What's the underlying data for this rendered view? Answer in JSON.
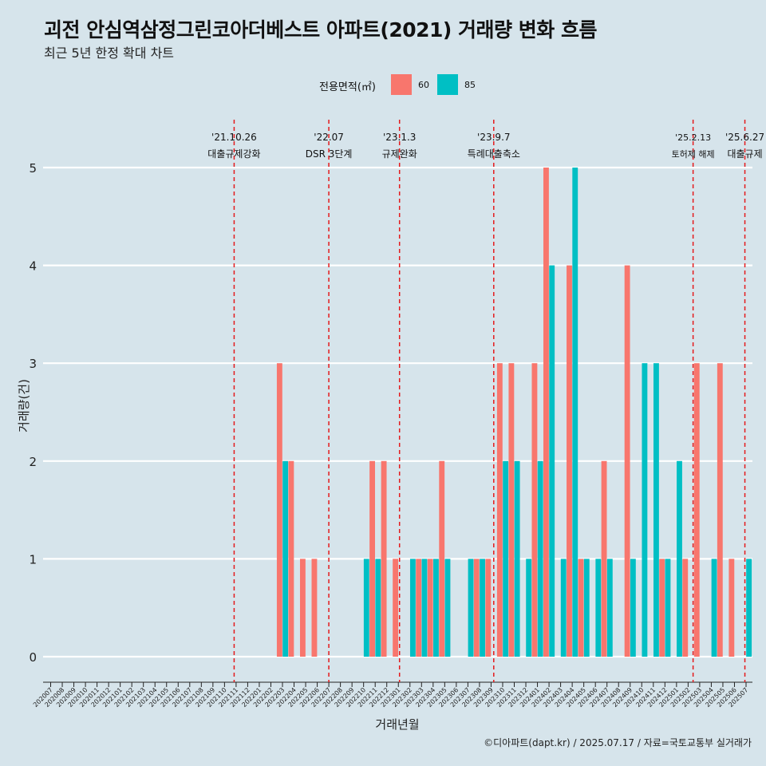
{
  "colors": {
    "background": "#d6e4eb",
    "gridline": "#ffffff",
    "series_60": "#f8766d",
    "series_85": "#00bfc4",
    "event_line": "#e41a1c"
  },
  "legend": {
    "title": "전용면적(㎡)",
    "items": [
      {
        "name": "60",
        "color": "#f8766d"
      },
      {
        "name": "85",
        "color": "#00bfc4"
      }
    ]
  },
  "chart_data": {
    "type": "bar",
    "title": "괴전 안심역삼정그린코아더베스트 아파트(2021) 거래량 변화 흐름",
    "subtitle": "최근 5년 한정 확대 차트",
    "xlabel": "거래년월",
    "ylabel": "거래량(건)",
    "caption": "©디아파트(dapt.kr) / 2025.07.17 / 자료=국토교통부 실거래가",
    "ylim": [
      0,
      5
    ],
    "yticks": [
      0,
      1,
      2,
      3,
      4,
      5
    ],
    "categories": [
      "202007",
      "202008",
      "202009",
      "202010",
      "202011",
      "202012",
      "202101",
      "202102",
      "202103",
      "202104",
      "202105",
      "202106",
      "202107",
      "202108",
      "202109",
      "202110",
      "202111",
      "202112",
      "202201",
      "202202",
      "202203",
      "202204",
      "202205",
      "202206",
      "202207",
      "202208",
      "202209",
      "202210",
      "202211",
      "202212",
      "202301",
      "202302",
      "202303",
      "202304",
      "202305",
      "202306",
      "202307",
      "202308",
      "202309",
      "202310",
      "202311",
      "202312",
      "202401",
      "202402",
      "202403",
      "202404",
      "202405",
      "202406",
      "202407",
      "202408",
      "202409",
      "202410",
      "202411",
      "202412",
      "202501",
      "202502",
      "202503",
      "202504",
      "202505",
      "202506",
      "202507"
    ],
    "series": [
      {
        "name": "60",
        "values": [
          0,
          0,
          0,
          0,
          0,
          0,
          0,
          0,
          0,
          0,
          0,
          0,
          0,
          0,
          0,
          0,
          0,
          0,
          0,
          0,
          3,
          2,
          1,
          1,
          0,
          0,
          0,
          0,
          2,
          2,
          1,
          0,
          1,
          1,
          2,
          0,
          0,
          1,
          1,
          3,
          3,
          0,
          3,
          5,
          0,
          4,
          1,
          0,
          2,
          0,
          4,
          0,
          0,
          1,
          0,
          1,
          3,
          0,
          3,
          1,
          0
        ]
      },
      {
        "name": "85",
        "values": [
          0,
          0,
          0,
          0,
          0,
          0,
          0,
          0,
          0,
          0,
          0,
          0,
          0,
          0,
          0,
          0,
          0,
          0,
          0,
          0,
          2,
          0,
          0,
          0,
          0,
          0,
          0,
          1,
          1,
          0,
          0,
          1,
          1,
          1,
          1,
          0,
          1,
          1,
          0,
          2,
          2,
          1,
          2,
          4,
          1,
          5,
          1,
          1,
          1,
          0,
          1,
          3,
          3,
          1,
          2,
          0,
          0,
          1,
          0,
          0,
          1
        ]
      }
    ],
    "events": [
      {
        "date": "202110.83",
        "label_top": "'21.10.26",
        "label_bottom": "대출규제강화"
      },
      {
        "date": "202207",
        "label_top": "'22.07",
        "label_bottom": "DSR 3단계"
      },
      {
        "date": "202301.1",
        "label_top": "'23.1.3",
        "label_bottom": "규제완화"
      },
      {
        "date": "202309.23",
        "label_top": "'23.9.7",
        "label_bottom": "특례대출축소"
      },
      {
        "date": "202502.43",
        "label_top": "'25.2.13",
        "label_bottom": "토허제 해제"
      },
      {
        "date": "202506.9",
        "label_top": "'25.6.27",
        "label_bottom": "대출규제"
      }
    ]
  }
}
